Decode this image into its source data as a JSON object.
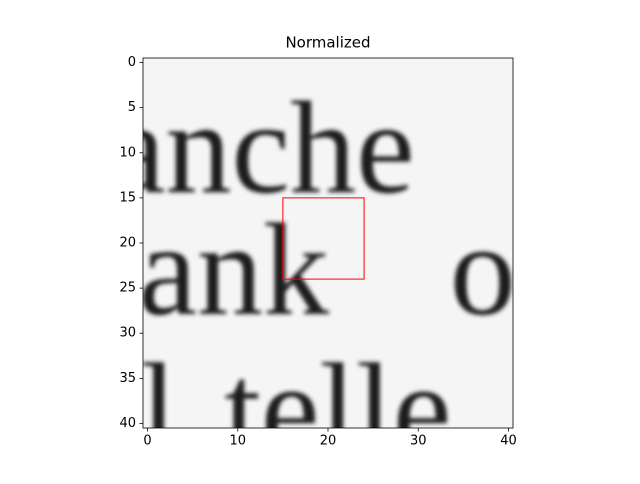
{
  "chart_data": {
    "type": "image",
    "title": "Normalized",
    "image_text": [
      "anche",
      "ank",
      "o",
      "l",
      "telle"
    ],
    "xlim": [
      -0.5,
      40.5
    ],
    "ylim": [
      40.5,
      -0.5
    ],
    "xticks": [
      0,
      10,
      20,
      30,
      40
    ],
    "yticks": [
      0,
      5,
      10,
      15,
      20,
      25,
      30,
      35,
      40
    ],
    "rectangle": {
      "x": 15,
      "y": 15,
      "width": 9,
      "height": 9,
      "color": "red"
    }
  }
}
